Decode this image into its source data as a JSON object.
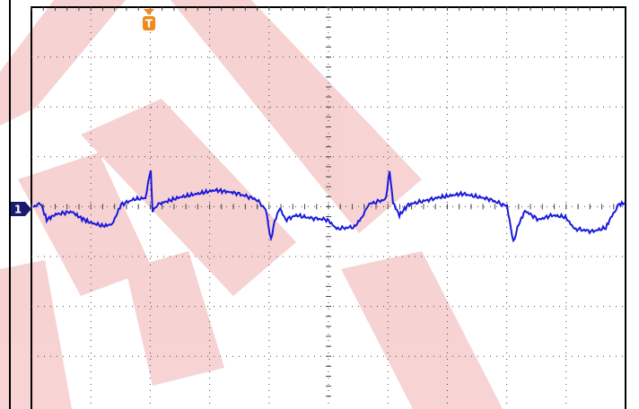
{
  "markers": {
    "channel": "1",
    "trigger": "T"
  }
}
